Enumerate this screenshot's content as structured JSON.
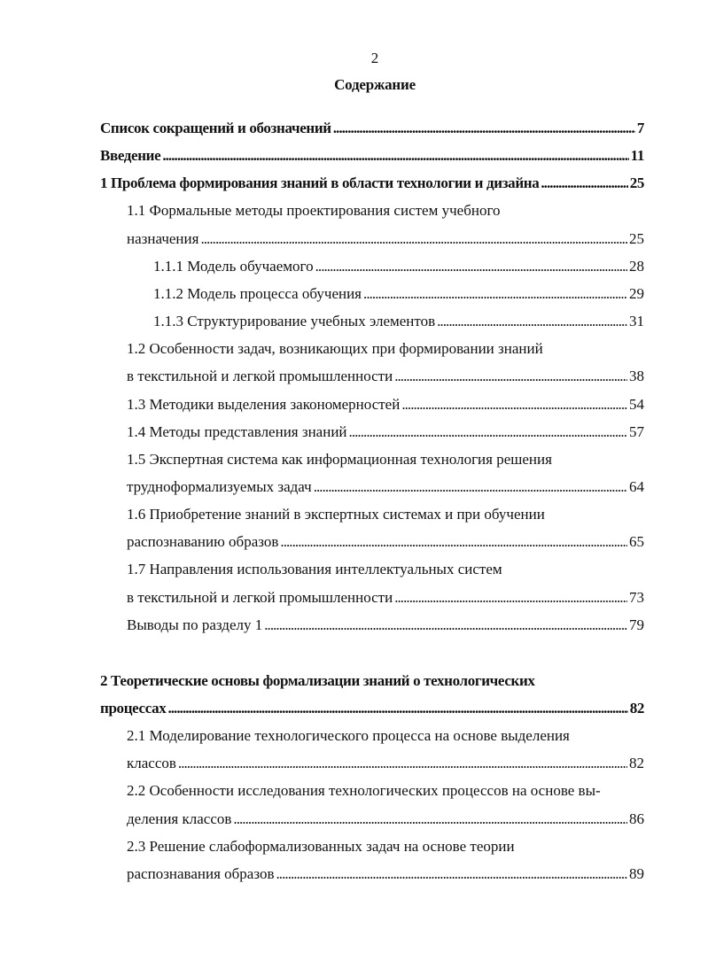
{
  "page_number": "2",
  "title": "Содержание",
  "entries": [
    {
      "level": 0,
      "bold": true,
      "text": "Список сокращений и обозначений",
      "page": "7"
    },
    {
      "level": 0,
      "bold": true,
      "text": "Введение",
      "page": "11"
    },
    {
      "level": 0,
      "bold": true,
      "text": "1 Проблема формирования знаний в области технологии и дизайна",
      "page": "25"
    },
    {
      "level": 1,
      "bold": false,
      "text": "1.1 Формальные методы проектирования систем учебного",
      "page": ""
    },
    {
      "level": 1,
      "bold": false,
      "text": "назначения",
      "page": "25"
    },
    {
      "level": 2,
      "bold": false,
      "text": "1.1.1 Модель обучаемого",
      "page": "28"
    },
    {
      "level": 2,
      "bold": false,
      "text": "1.1.2 Модель процесса обучения",
      "page": "29"
    },
    {
      "level": 2,
      "bold": false,
      "text": "1.1.3 Структурирование учебных элементов",
      "page": "31"
    },
    {
      "level": 1,
      "bold": false,
      "text": "1.2 Особенности задач, возникающих при формировании знаний",
      "page": ""
    },
    {
      "level": 1,
      "bold": false,
      "text": "в текстильной и легкой промышленности",
      "page": "38"
    },
    {
      "level": 1,
      "bold": false,
      "text": "1.3 Методики выделения закономерностей",
      "page": "54"
    },
    {
      "level": 1,
      "bold": false,
      "text": "1.4 Методы представления знаний",
      "page": "57"
    },
    {
      "level": 1,
      "bold": false,
      "text": "1.5 Экспертная система как информационная технология решения",
      "page": ""
    },
    {
      "level": 1,
      "bold": false,
      "text": "трудноформализуемых задач",
      "page": "64"
    },
    {
      "level": 1,
      "bold": false,
      "text": "1.6 Приобретение знаний в экспертных системах и при обучении",
      "page": ""
    },
    {
      "level": 1,
      "bold": false,
      "text": "распознаванию образов",
      "page": "65"
    },
    {
      "level": 1,
      "bold": false,
      "text": "1.7 Направления использования интеллектуальных систем",
      "page": ""
    },
    {
      "level": 1,
      "bold": false,
      "text": "в текстильной и легкой промышленности",
      "page": "73"
    },
    {
      "level": 1,
      "bold": false,
      "text": "Выводы по разделу 1",
      "page": "79"
    },
    {
      "level": 0,
      "bold": true,
      "text": "2 Теоретические основы формализации знаний о технологических",
      "page": ""
    },
    {
      "level": 0,
      "bold": true,
      "text": "процессах",
      "page": "82"
    },
    {
      "level": 1,
      "bold": false,
      "text": "2.1 Моделирование технологического процесса на основе выделения",
      "page": ""
    },
    {
      "level": 1,
      "bold": false,
      "text": "классов",
      "page": "82"
    },
    {
      "level": 1,
      "bold": false,
      "text": "2.2 Особенности исследования технологических процессов на основе вы-",
      "page": ""
    },
    {
      "level": 1,
      "bold": false,
      "text": "деления классов",
      "page": "86"
    },
    {
      "level": 1,
      "bold": false,
      "text": "2.3 Решение слабоформализованных задач на основе теории",
      "page": ""
    },
    {
      "level": 1,
      "bold": false,
      "text": "распознавания образов",
      "page": "89"
    }
  ]
}
